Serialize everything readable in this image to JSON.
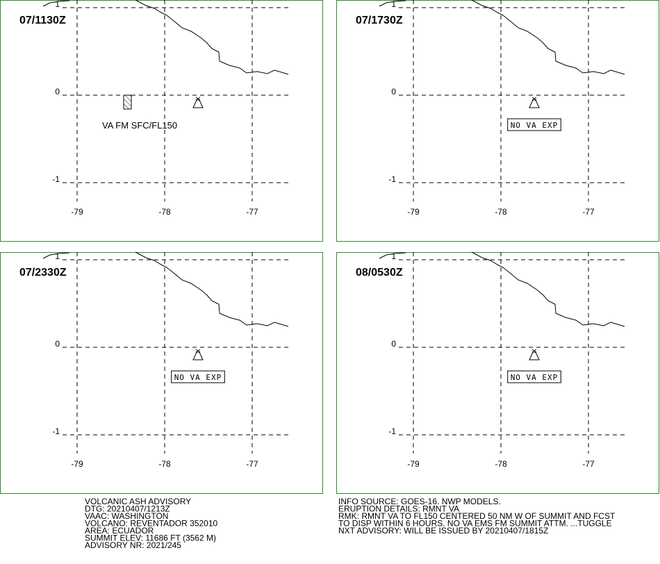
{
  "panels": [
    {
      "time": "07/1130Z",
      "label": "VA FM SFC/FL150"
    },
    {
      "time": "07/1730Z",
      "label": "NO VA EXP"
    },
    {
      "time": "07/2330Z",
      "label": "NO VA EXP"
    },
    {
      "time": "08/0530Z",
      "label": "NO VA EXP"
    }
  ],
  "lat_ticks": [
    1,
    0,
    -1
  ],
  "lon_ticks": [
    -79,
    -78,
    -77
  ],
  "advisory": {
    "left": [
      "VOLCANIC ASH ADVISORY",
      "DTG: 20210407/1213Z",
      "VAAC: WASHINGTON",
      "VOLCANO: REVENTADOR 352010",
      "AREA: ECUADOR",
      "SUMMIT ELEV: 11686 FT (3562 M)",
      "ADVISORY NR: 2021/245"
    ],
    "right": [
      "INFO SOURCE: GOES-16. NWP MODELS.",
      "ERUPTION DETAILS: RMNT VA",
      "RMK: RMNT VA TO FL150 CENTERED 50 NM W OF SUMMIT AND FCST",
      "TO DISP WITHIN 6 HOURS. NO VA EMS FM SUMMIT ATTM. ...TUGGLE",
      "NXT ADVISORY: WILL BE ISSUED BY 20210407/1815Z"
    ]
  }
}
